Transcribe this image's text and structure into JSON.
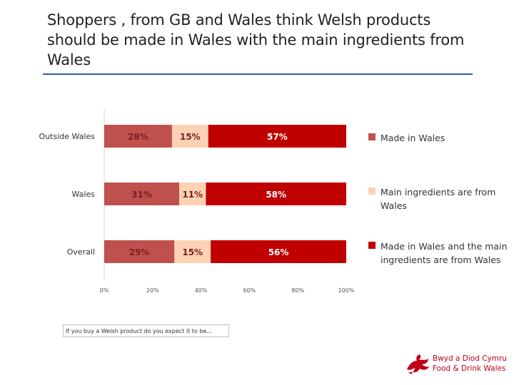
{
  "slide": {
    "title": "Shoppers , from GB and Wales think Welsh products should be made in Wales with the main ingredients from Wales",
    "question": "If you buy a Welsh product do you expect it to be…"
  },
  "logo": {
    "line1": "Bwyd a Diod Cymru",
    "line2": "Food & Drink Wales",
    "color": "#c00018"
  },
  "chart_data": {
    "type": "bar",
    "orientation": "horizontal",
    "stacked": "100%",
    "categories": [
      "Outside Wales",
      "Wales",
      "Overall"
    ],
    "series": [
      {
        "name": "Made in Wales",
        "values": [
          28,
          31,
          29
        ],
        "color": "#c0504d",
        "label_color": "#7a1f1f"
      },
      {
        "name": "Main ingredients are from Wales",
        "values": [
          15,
          11,
          15
        ],
        "color": "#fbd3b4",
        "label_color": "#7a1f1f"
      },
      {
        "name": "Made in Wales and the main ingredients are from Wales",
        "values": [
          57,
          58,
          56
        ],
        "color": "#c00000",
        "label_color": "#ffffff"
      }
    ],
    "value_suffix": "%",
    "xlim": [
      0,
      100
    ],
    "xticks": [
      "0%",
      "20%",
      "40%",
      "60%",
      "80%",
      "100%"
    ],
    "legend_position": "right",
    "grid": false
  }
}
